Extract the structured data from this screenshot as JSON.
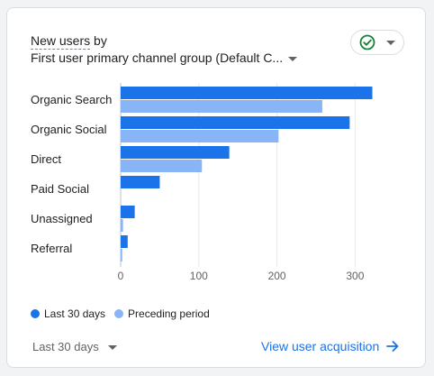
{
  "card": {
    "title_metric": "New users",
    "title_by": " by",
    "dimension": "First user primary channel group (Default C...",
    "status_icon": "check-circle-icon"
  },
  "colors": {
    "current": "#1a73e8",
    "previous": "#8ab4f8",
    "status_ok": "#188038"
  },
  "chart_data": {
    "type": "bar",
    "orientation": "horizontal",
    "categories": [
      "Organic Search",
      "Organic Social",
      "Direct",
      "Paid Social",
      "Unassigned",
      "Referral"
    ],
    "series": [
      {
        "name": "Last 30 days",
        "values": [
          322,
          293,
          139,
          50,
          18,
          9
        ]
      },
      {
        "name": "Preceding period",
        "values": [
          258,
          202,
          104,
          0,
          3,
          2
        ]
      }
    ],
    "xticks": [
      0,
      100,
      200,
      300
    ],
    "xlim": [
      0,
      340
    ],
    "grid": true,
    "legend": "bottom-left"
  },
  "legend": {
    "current_label": "Last 30 days",
    "previous_label": "Preceding period"
  },
  "footer": {
    "date_range": "Last 30 days",
    "link_label": "View user acquisition"
  }
}
